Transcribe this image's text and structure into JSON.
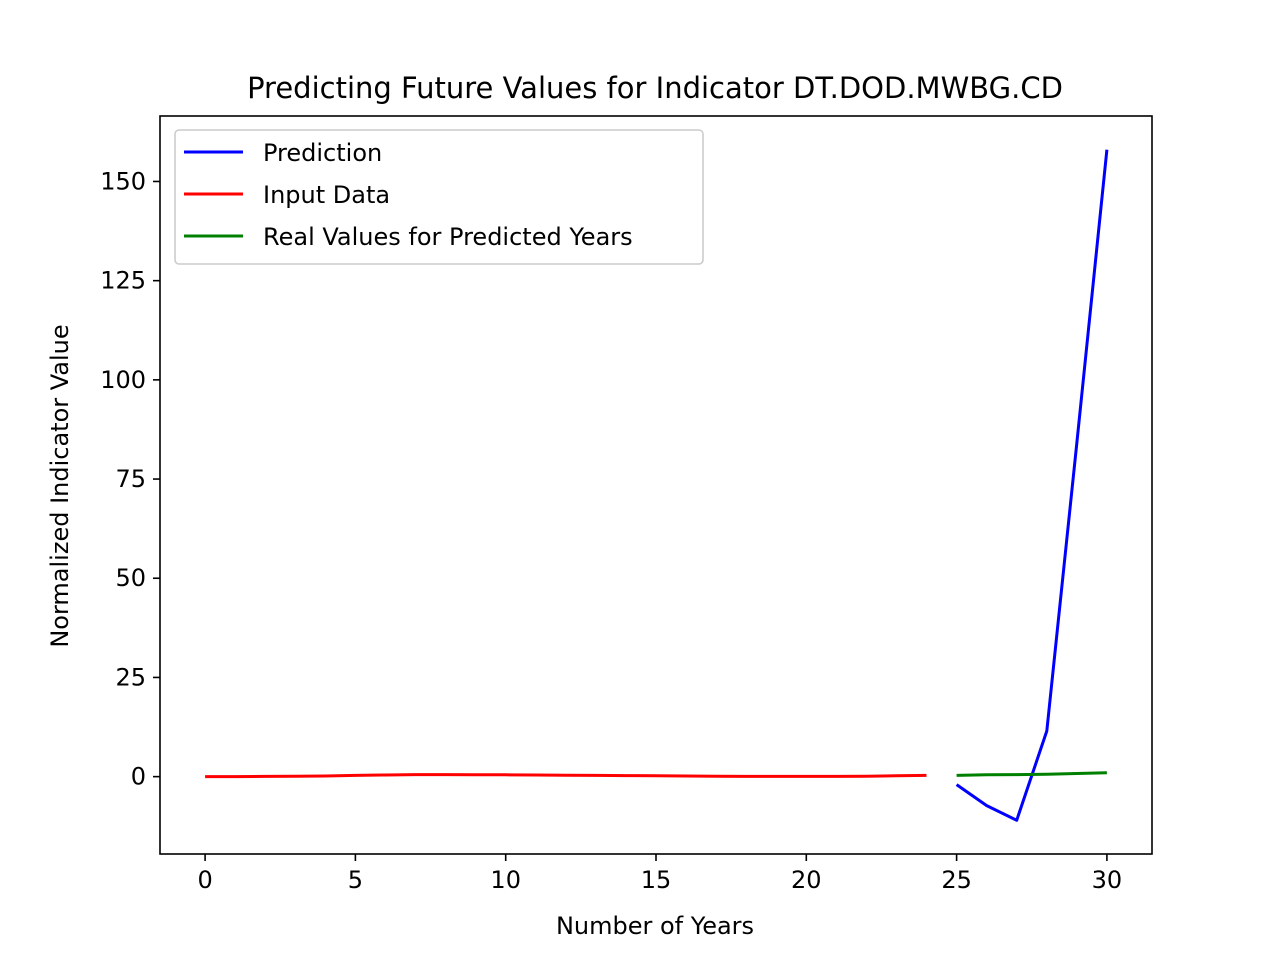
{
  "chart_data": {
    "type": "line",
    "title": "Predicting Future Values for Indicator DT.DOD.MWBG.CD",
    "xlabel": "Number of Years",
    "ylabel": "Normalized Indicator Value",
    "xlim": [
      -1.5,
      31.5
    ],
    "ylim": [
      -19.5,
      166.5
    ],
    "xticks": [
      0,
      5,
      10,
      15,
      20,
      25,
      30
    ],
    "yticks": [
      0,
      25,
      50,
      75,
      100,
      125,
      150
    ],
    "grid": false,
    "legend_position": "upper-left",
    "series": [
      {
        "name": "Prediction",
        "color": "#0000ff",
        "x": [
          25,
          26,
          27,
          28,
          29,
          30
        ],
        "y": [
          -2,
          -7.3,
          -11,
          11.5,
          84,
          158
        ]
      },
      {
        "name": "Input Data",
        "color": "#ff0000",
        "x": [
          0,
          1,
          2,
          3,
          4,
          5,
          6,
          7,
          8,
          9,
          10,
          11,
          12,
          13,
          14,
          15,
          16,
          17,
          18,
          19,
          20,
          21,
          22,
          23,
          24
        ],
        "y": [
          0,
          0,
          0.05,
          0.1,
          0.15,
          0.3,
          0.4,
          0.5,
          0.5,
          0.45,
          0.45,
          0.4,
          0.35,
          0.3,
          0.25,
          0.2,
          0.15,
          0.1,
          0.05,
          0.05,
          0.05,
          0.05,
          0.1,
          0.2,
          0.3
        ]
      },
      {
        "name": "Real Values for Predicted Years",
        "color": "#008000",
        "x": [
          25,
          26,
          27,
          28,
          29,
          30
        ],
        "y": [
          0.3,
          0.45,
          0.5,
          0.6,
          0.8,
          1.0
        ]
      }
    ]
  }
}
